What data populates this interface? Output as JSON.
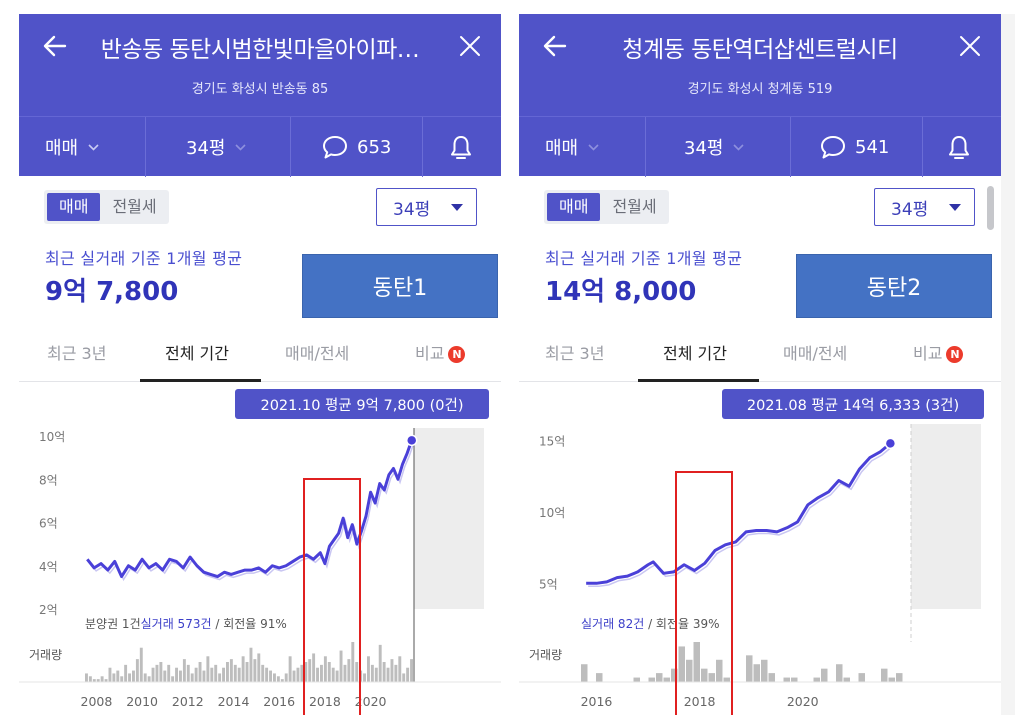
{
  "colors": {
    "header": "#5053c8",
    "accent": "#3034b8",
    "line": "#4a40d8",
    "tag": "#4472c4",
    "highlight": "#e02020",
    "badge": "#ec3b2c"
  },
  "panels": [
    {
      "title": "반송동 동탄시범한빛마을아이파…",
      "address": "경기도 화성시 반송동 85",
      "toolbar": {
        "trade_type": "매매",
        "size": "34평",
        "comments": "653"
      },
      "segment": [
        "매매",
        "전월세"
      ],
      "size_select": "34평",
      "avg_caption": "최근 실거래 기준 1개월 평균",
      "avg_price": "9억 7,800",
      "tag": "동탄1",
      "tabs": [
        "최근 3년",
        "전체 기간",
        "매매/전세",
        "비교"
      ],
      "new_badge": "N"
    },
    {
      "title": "청계동 동탄역더샵센트럴시티",
      "address": "경기도 화성시 청계동 519",
      "toolbar": {
        "trade_type": "매매",
        "size": "34평",
        "comments": "541"
      },
      "segment": [
        "매매",
        "전월세"
      ],
      "size_select": "34평",
      "avg_caption": "최근 실거래 기준 1개월 평균",
      "avg_price": "14억 8,000",
      "tag": "동탄2",
      "tabs": [
        "최근 3년",
        "전체 기간",
        "매매/전세",
        "비교"
      ],
      "new_badge": "N"
    }
  ],
  "chart_data": [
    {
      "type": "line",
      "tooltip": "2021.10 평균 9억 7,800 (0건)",
      "y_ticks": [
        "10억",
        "8억",
        "6억",
        "4억",
        "2억"
      ],
      "y_tick_values": [
        10,
        8,
        6,
        4,
        2
      ],
      "ylim": [
        2,
        10
      ],
      "x_ticks": [
        "2008",
        "2010",
        "2012",
        "2014",
        "2016",
        "2018",
        "2020"
      ],
      "x_tick_values": [
        2008,
        2010,
        2012,
        2014,
        2016,
        2018,
        2020
      ],
      "xlim": [
        2007.5,
        2021.9
      ],
      "stats": {
        "prefix": "분양권 1건",
        "link": "실거래 573건",
        "suffix": " / 회전율 91%"
      },
      "volume_label": "거래량",
      "series": [
        {
          "x": [
            2007.6,
            2007.9,
            2008.2,
            2008.5,
            2008.8,
            2009.1,
            2009.4,
            2009.7,
            2010.0,
            2010.3,
            2010.6,
            2010.9,
            2011.2,
            2011.5,
            2011.8,
            2012.1,
            2012.4,
            2012.7,
            2013.0,
            2013.3,
            2013.6,
            2013.9,
            2014.2,
            2014.5,
            2014.8,
            2015.1,
            2015.4,
            2015.7,
            2016.0,
            2016.3,
            2016.6,
            2016.9,
            2017.2,
            2017.5,
            2017.8,
            2018.0,
            2018.2,
            2018.4,
            2018.6,
            2018.8,
            2019.0,
            2019.2,
            2019.4,
            2019.6,
            2019.8,
            2020.0,
            2020.2,
            2020.4,
            2020.6,
            2020.8,
            2021.0,
            2021.2,
            2021.4,
            2021.6,
            2021.8
          ],
          "values": [
            4.3,
            3.9,
            4.1,
            3.8,
            4.2,
            3.5,
            4.0,
            3.8,
            4.3,
            3.9,
            4.1,
            3.8,
            4.3,
            4.2,
            3.9,
            4.4,
            4.0,
            3.7,
            3.6,
            3.5,
            3.7,
            3.6,
            3.7,
            3.8,
            3.8,
            3.9,
            3.7,
            4.0,
            3.9,
            4.0,
            4.2,
            4.4,
            4.5,
            4.3,
            4.6,
            4.1,
            4.9,
            5.2,
            5.5,
            6.2,
            5.3,
            5.9,
            5.0,
            5.6,
            6.3,
            7.4,
            6.9,
            7.8,
            7.5,
            8.2,
            8.5,
            8.0,
            8.7,
            9.2,
            9.8
          ]
        }
      ],
      "volume": [
        3,
        2,
        1,
        1,
        2,
        1,
        5,
        3,
        4,
        2,
        6,
        3,
        4,
        8,
        12,
        3,
        2,
        5,
        6,
        7,
        4,
        6,
        2,
        5,
        4,
        8,
        6,
        3,
        5,
        7,
        4,
        9,
        5,
        6,
        3,
        5,
        7,
        8,
        6,
        5,
        9,
        7,
        12,
        8,
        10,
        6,
        5,
        4,
        3,
        2,
        1,
        3,
        9,
        4,
        5,
        6,
        7,
        8,
        10,
        5,
        6,
        9,
        7,
        5,
        4,
        11,
        6,
        8,
        14,
        7,
        4,
        3,
        9,
        6,
        5,
        13,
        7,
        5,
        8,
        6,
        9,
        3,
        5,
        8
      ]
    },
    {
      "type": "line",
      "tooltip": "2021.08 평균 14억 6,333 (3건)",
      "y_ticks": [
        "15억",
        "10억",
        "5억"
      ],
      "y_tick_values": [
        15,
        10,
        5
      ],
      "ylim": [
        3.2,
        15.6
      ],
      "x_ticks": [
        "2016",
        "2018",
        "2020"
      ],
      "x_tick_values": [
        2016,
        2018,
        2020
      ],
      "xlim": [
        2015.7,
        2022.1
      ],
      "stats": {
        "prefix": "",
        "link": "실거래 82건",
        "suffix": " / 회전율 39%"
      },
      "volume_label": "거래량",
      "series": [
        {
          "x": [
            2015.8,
            2016.0,
            2016.2,
            2016.4,
            2016.6,
            2016.8,
            2017.0,
            2017.1,
            2017.3,
            2017.5,
            2017.7,
            2017.9,
            2018.1,
            2018.3,
            2018.5,
            2018.7,
            2018.9,
            2019.1,
            2019.3,
            2019.5,
            2019.7,
            2019.9,
            2020.1,
            2020.3,
            2020.5,
            2020.7,
            2020.9,
            2021.1,
            2021.3,
            2021.5,
            2021.7
          ],
          "values": [
            5.0,
            5.0,
            5.1,
            5.4,
            5.5,
            5.8,
            6.3,
            6.5,
            5.7,
            5.8,
            6.3,
            5.9,
            6.4,
            7.3,
            7.7,
            7.9,
            8.6,
            8.7,
            8.7,
            8.6,
            8.9,
            9.3,
            10.5,
            11.0,
            11.4,
            12.2,
            11.8,
            13.0,
            13.8,
            14.2,
            14.8
          ]
        }
      ],
      "volume": [
        4,
        0,
        2,
        0,
        0,
        0,
        0,
        1,
        0,
        1,
        2,
        1,
        3,
        8,
        5,
        9,
        3,
        2,
        5,
        1,
        0,
        0,
        6,
        4,
        5,
        2,
        0,
        1,
        1,
        0,
        0,
        1,
        3,
        0,
        4,
        1,
        0,
        2,
        0,
        0,
        3,
        1,
        2,
        0
      ]
    }
  ]
}
